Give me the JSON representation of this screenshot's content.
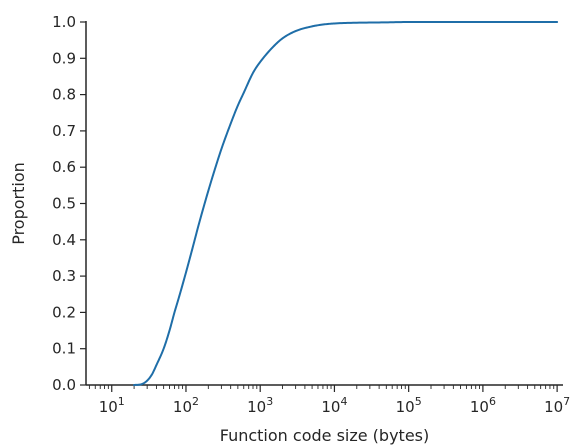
{
  "chart_data": {
    "type": "line",
    "xlabel": "Function code size (bytes)",
    "ylabel": "Proportion",
    "xscale": "log",
    "xlim": [
      4.5,
      12000000
    ],
    "ylim": [
      0.0,
      1.0
    ],
    "grid": false,
    "x_ticks": [
      {
        "base": "10",
        "exp": "1"
      },
      {
        "base": "10",
        "exp": "2"
      },
      {
        "base": "10",
        "exp": "3"
      },
      {
        "base": "10",
        "exp": "4"
      },
      {
        "base": "10",
        "exp": "5"
      },
      {
        "base": "10",
        "exp": "6"
      },
      {
        "base": "10",
        "exp": "7"
      }
    ],
    "y_ticks": [
      "0.0",
      "0.1",
      "0.2",
      "0.3",
      "0.4",
      "0.5",
      "0.6",
      "0.7",
      "0.8",
      "0.9",
      "1.0"
    ],
    "series": [
      {
        "color": "#1f6ea8",
        "x": [
          20,
          25,
          30,
          35,
          40,
          50,
          60,
          70,
          80,
          100,
          120,
          150,
          200,
          250,
          300,
          400,
          500,
          600,
          800,
          1000,
          1500,
          2000,
          3000,
          5000,
          7000,
          10000,
          20000,
          50000,
          100000,
          1000000,
          10000000
        ],
        "y": [
          0.0,
          0.002,
          0.012,
          0.03,
          0.055,
          0.1,
          0.15,
          0.2,
          0.24,
          0.31,
          0.37,
          0.445,
          0.535,
          0.6,
          0.65,
          0.72,
          0.77,
          0.805,
          0.86,
          0.89,
          0.932,
          0.955,
          0.975,
          0.988,
          0.993,
          0.996,
          0.998,
          0.999,
          1.0,
          1.0,
          1.0
        ]
      }
    ]
  }
}
